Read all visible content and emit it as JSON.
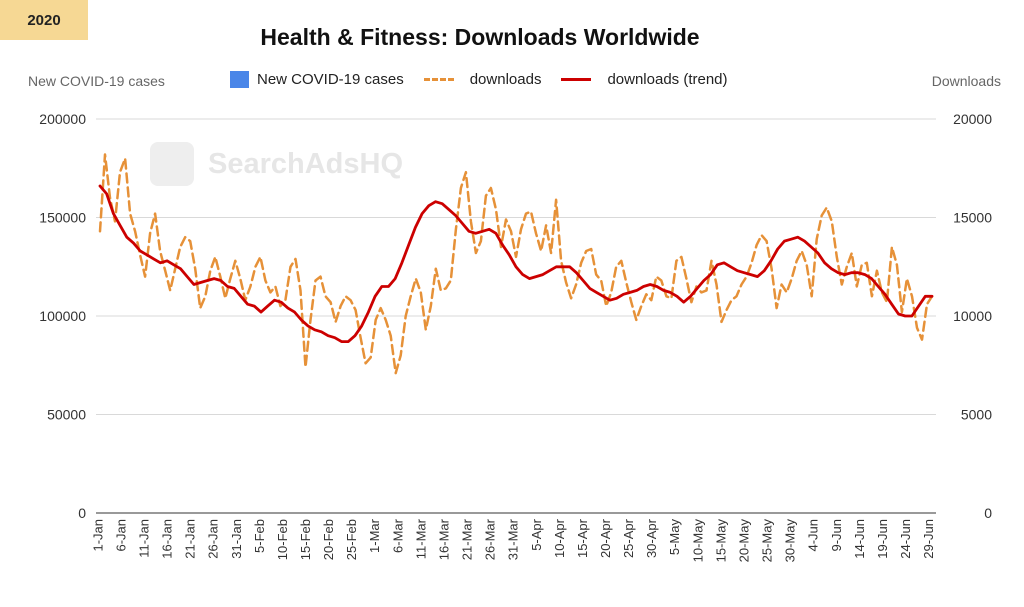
{
  "badge": "2020",
  "title": "Health & Fitness: Downloads Worldwide",
  "left_axis_label": "New COVID-19 cases",
  "right_axis_label": "Downloads",
  "watermark": "SearchAdsHQ",
  "legend": [
    {
      "label": "New COVID-19 cases",
      "color": "#4a86e8",
      "kind": "box"
    },
    {
      "label": "downloads",
      "color": "#e69138",
      "kind": "dash"
    },
    {
      "label": "downloads (trend)",
      "color": "#cc0000",
      "kind": "solid"
    }
  ],
  "chart_data": {
    "type": "bar+line",
    "title": "Health & Fitness: Downloads Worldwide",
    "x_tick_labels": [
      "1-Jan",
      "6-Jan",
      "11-Jan",
      "16-Jan",
      "21-Jan",
      "26-Jan",
      "31-Jan",
      "5-Feb",
      "10-Feb",
      "15-Feb",
      "20-Feb",
      "25-Feb",
      "1-Mar",
      "6-Mar",
      "11-Mar",
      "16-Mar",
      "21-Mar",
      "26-Mar",
      "31-Mar",
      "5-Apr",
      "10-Apr",
      "15-Apr",
      "20-Apr",
      "25-Apr",
      "30-Apr",
      "5-May",
      "10-May",
      "15-May",
      "20-May",
      "25-May",
      "30-May",
      "4-Jun",
      "9-Jun",
      "14-Jun",
      "19-Jun",
      "24-Jun",
      "29-Jun"
    ],
    "y_left": {
      "label": "New COVID-19 cases",
      "ticks": [
        "0",
        "50000",
        "100000",
        "150000",
        "200000"
      ],
      "range": [
        0,
        200000
      ]
    },
    "y_right": {
      "label": "Downloads",
      "ticks": [
        "0",
        "5000",
        "10000",
        "15000",
        "20000"
      ],
      "range": [
        0,
        20000
      ]
    },
    "grid": true,
    "legend_position": "top",
    "series": [
      {
        "name": "New COVID-19 cases",
        "type": "bar",
        "axis": "left",
        "color": "#4a86e8",
        "values": [
          0,
          0,
          0,
          0,
          0,
          0,
          0,
          0,
          0,
          0,
          0,
          0,
          0,
          0,
          0,
          0,
          0,
          0,
          0,
          0,
          0,
          0,
          0,
          0,
          0,
          0,
          0,
          0,
          0,
          0,
          0,
          0,
          0,
          0,
          0,
          0,
          0,
          0,
          0,
          0,
          0,
          0,
          0,
          0,
          0,
          0,
          0,
          0,
          0,
          0,
          0,
          0,
          0,
          0,
          0,
          0,
          0,
          0,
          0,
          0,
          0,
          0,
          0,
          0,
          0,
          0,
          0,
          0,
          0,
          0,
          0,
          0,
          0,
          0,
          0,
          0,
          0,
          0,
          0,
          0,
          0,
          0,
          0,
          0,
          0,
          0,
          0,
          0,
          0,
          0,
          0,
          0,
          0,
          0,
          0,
          0,
          0,
          0,
          0,
          0,
          0,
          0,
          0,
          0,
          0,
          0,
          0,
          0,
          0,
          0,
          0,
          0,
          0,
          0,
          0,
          0,
          0,
          0,
          0,
          0,
          0,
          0,
          0,
          0,
          0,
          0,
          0,
          0,
          0,
          0,
          0,
          0,
          0,
          0,
          0,
          0,
          0,
          0,
          0,
          0,
          0,
          0,
          0,
          0,
          0,
          0,
          0,
          0,
          0,
          0,
          0,
          0,
          0,
          0,
          0,
          0,
          0,
          0,
          0,
          0,
          0,
          0,
          0,
          0,
          0,
          0,
          0,
          0,
          0,
          0,
          0,
          0,
          0,
          0,
          0,
          0,
          0,
          0,
          0,
          0,
          0,
          0
        ]
      },
      {
        "name": "downloads",
        "type": "line",
        "style": "dashed",
        "axis": "right",
        "color": "#e69138",
        "values": [
          14300,
          18200,
          16000,
          14800,
          17300,
          18000,
          15200,
          14300,
          13100,
          12000,
          14200,
          15200,
          13300,
          12300,
          11300,
          12400,
          13500,
          14000,
          13800,
          12400,
          10400,
          11000,
          12300,
          13000,
          12000,
          10900,
          11900,
          12800,
          11900,
          10800,
          11500,
          12500,
          13000,
          11800,
          11200,
          11500,
          10500,
          10800,
          12500,
          12900,
          11300,
          7400,
          9800,
          11800,
          12000,
          11000,
          10700,
          9700,
          10500,
          11000,
          10800,
          10300,
          8900,
          7600,
          7900,
          9800,
          10400,
          9800,
          9000,
          7100,
          8000,
          10000,
          11000,
          11900,
          11200,
          9300,
          10500,
          12400,
          11300,
          11400,
          11800,
          14400,
          16500,
          17300,
          14800,
          13200,
          13800,
          16100,
          16500,
          15400,
          13500,
          14900,
          14300,
          13000,
          14400,
          15200,
          15300,
          14200,
          13300,
          14600,
          13200,
          15900,
          12800,
          11700,
          10900,
          11600,
          12700,
          13300,
          13400,
          12100,
          11800,
          10500,
          11200,
          12500,
          12800,
          11700,
          10700,
          9800,
          10500,
          11100,
          10800,
          12000,
          11800,
          11000,
          10900,
          12800,
          13000,
          11900,
          10700,
          11500,
          11200,
          11300,
          12800,
          11600,
          9700,
          10300,
          10800,
          11000,
          11600,
          12000,
          12700,
          13600,
          14100,
          13800,
          12400,
          10400,
          11600,
          11200,
          11900,
          12800,
          13300,
          12600,
          11000,
          13900,
          15100,
          15500,
          14800,
          13000,
          11600,
          12500,
          13200,
          11500,
          12600,
          12700,
          11000,
          12300,
          11200,
          10700,
          13500,
          12600,
          10200,
          11900,
          11000,
          9400,
          8800,
          10600,
          11000
        ]
      },
      {
        "name": "downloads (trend)",
        "type": "line",
        "style": "solid",
        "axis": "right",
        "color": "#cc0000",
        "values": [
          16600,
          16200,
          15200,
          14600,
          14000,
          13700,
          13300,
          13100,
          12900,
          12700,
          12800,
          12600,
          12400,
          12000,
          11600,
          11700,
          11800,
          11900,
          11800,
          11500,
          11400,
          11000,
          10600,
          10500,
          10200,
          10500,
          10800,
          10700,
          10400,
          10200,
          9800,
          9500,
          9300,
          9200,
          9000,
          8900,
          8700,
          8700,
          9000,
          9500,
          10200,
          11000,
          11500,
          11500,
          11900,
          12700,
          13600,
          14500,
          15200,
          15600,
          15800,
          15700,
          15400,
          15100,
          14700,
          14300,
          14200,
          14300,
          14400,
          14200,
          13600,
          13100,
          12500,
          12100,
          11900,
          12000,
          12100,
          12300,
          12500,
          12500,
          12500,
          12200,
          11800,
          11400,
          11200,
          11000,
          10800,
          10900,
          11100,
          11200,
          11300,
          11500,
          11600,
          11500,
          11300,
          11200,
          11000,
          10700,
          11000,
          11400,
          11800,
          12100,
          12600,
          12700,
          12500,
          12300,
          12200,
          12100,
          12000,
          12300,
          12800,
          13400,
          13800,
          13900,
          14000,
          13800,
          13500,
          13200,
          12700,
          12400,
          12200,
          12100,
          12200,
          12200,
          12100,
          11900,
          11500,
          11100,
          10600,
          10100,
          10000,
          10000,
          10500,
          11000,
          11000
        ]
      }
    ]
  }
}
